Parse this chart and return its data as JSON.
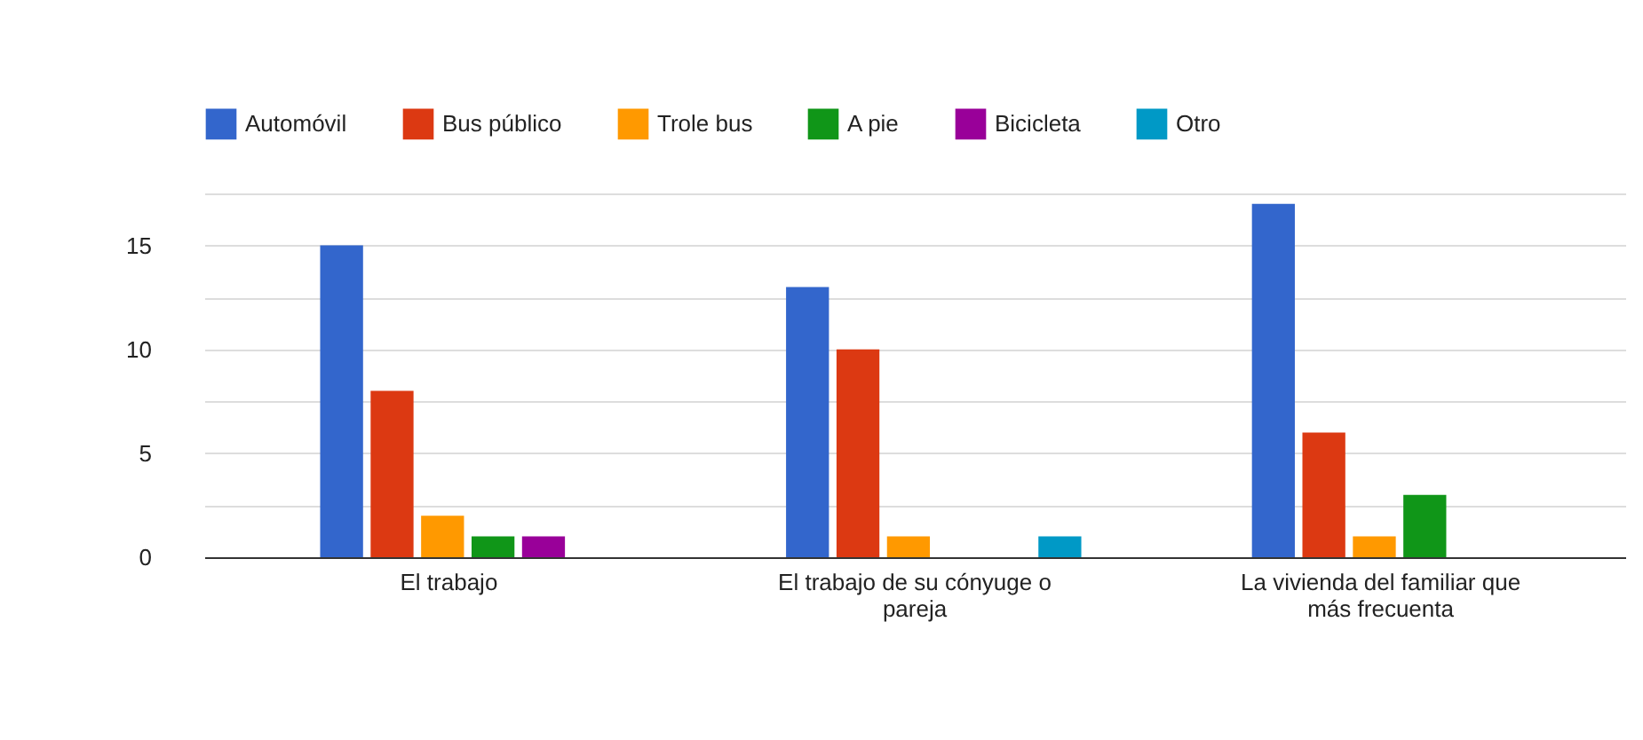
{
  "chart_data": {
    "type": "bar",
    "categories": [
      "El trabajo",
      "El trabajo de su cónyuge o pareja",
      "La vivienda del familiar que más frecuenta"
    ],
    "series": [
      {
        "name": "Automóvil",
        "color": "#3366cc",
        "values": [
          15,
          13,
          17
        ]
      },
      {
        "name": "Bus público",
        "color": "#dc3912",
        "values": [
          8,
          10,
          6
        ]
      },
      {
        "name": "Trole bus",
        "color": "#ff9900",
        "values": [
          2,
          1,
          1
        ]
      },
      {
        "name": "A pie",
        "color": "#109618",
        "values": [
          1,
          0,
          3
        ]
      },
      {
        "name": "Bicicleta",
        "color": "#990099",
        "values": [
          1,
          0,
          0
        ]
      },
      {
        "name": "Otro",
        "color": "#0099c6",
        "values": [
          0,
          1,
          0
        ]
      }
    ],
    "ylim": [
      0,
      17.5
    ],
    "yticks": [
      0,
      {
        "value": 2.5,
        "label": null
      },
      5,
      {
        "value": 7.5,
        "label": null
      },
      10,
      {
        "value": 12.5,
        "label": null
      },
      15,
      {
        "value": 17.5,
        "label": null
      }
    ],
    "grid": true,
    "legend": "top"
  }
}
